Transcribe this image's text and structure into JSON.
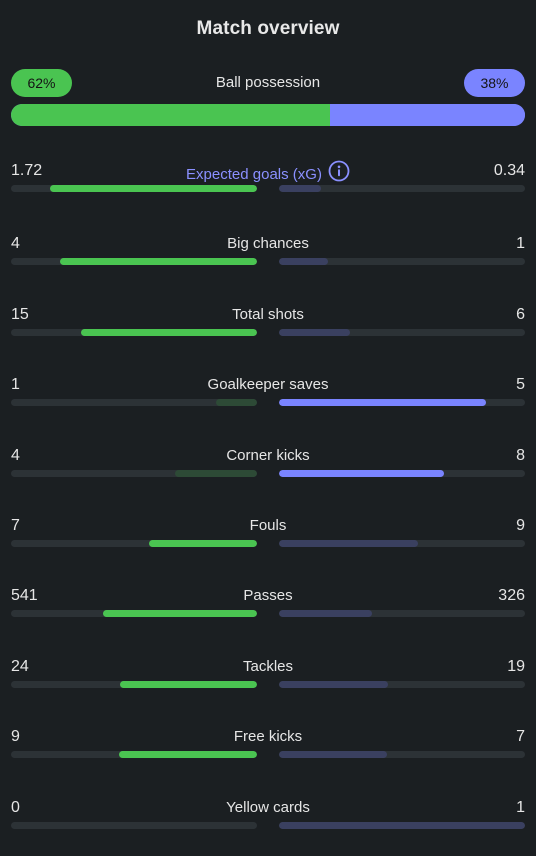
{
  "header": {
    "title": "Match overview"
  },
  "possession": {
    "label": "Ball possession",
    "home_text": "62%",
    "away_text": "38%",
    "home_fraction": 0.62,
    "away_fraction": 0.38
  },
  "colors": {
    "home": "#4ac451",
    "away": "#7a84ff",
    "home_muted": "#2d4a36",
    "away_muted": "#3a4060",
    "track": "#2c3236",
    "background": "#1b1f22",
    "accent_label": "#8a90ff"
  },
  "stats": [
    {
      "label": "Expected goals (xG)",
      "home": "1.72",
      "away": "0.34",
      "home_fill": 0.84,
      "away_fill": 0.17,
      "winner": "home",
      "info_icon": "info-circle-icon"
    },
    {
      "label": "Big chances",
      "home": "4",
      "away": "1",
      "home_fill": 0.8,
      "away_fill": 0.2,
      "winner": "home"
    },
    {
      "label": "Total shots",
      "home": "15",
      "away": "6",
      "home_fill": 0.715,
      "away_fill": 0.29,
      "winner": "home"
    },
    {
      "label": "Goalkeeper saves",
      "home": "1",
      "away": "5",
      "home_fill": 0.165,
      "away_fill": 0.84,
      "winner": "away"
    },
    {
      "label": "Corner kicks",
      "home": "4",
      "away": "8",
      "home_fill": 0.335,
      "away_fill": 0.67,
      "winner": "away"
    },
    {
      "label": "Fouls",
      "home": "7",
      "away": "9",
      "home_fill": 0.44,
      "away_fill": 0.565,
      "winner": "home"
    },
    {
      "label": "Passes",
      "home": "541",
      "away": "326",
      "home_fill": 0.625,
      "away_fill": 0.38,
      "winner": "home"
    },
    {
      "label": "Tackles",
      "home": "24",
      "away": "19",
      "home_fill": 0.555,
      "away_fill": 0.445,
      "winner": "home"
    },
    {
      "label": "Free kicks",
      "home": "9",
      "away": "7",
      "home_fill": 0.56,
      "away_fill": 0.44,
      "winner": "home"
    },
    {
      "label": "Yellow cards",
      "home": "0",
      "away": "1",
      "home_fill": 0.0,
      "away_fill": 1.0,
      "winner": "home"
    }
  ]
}
